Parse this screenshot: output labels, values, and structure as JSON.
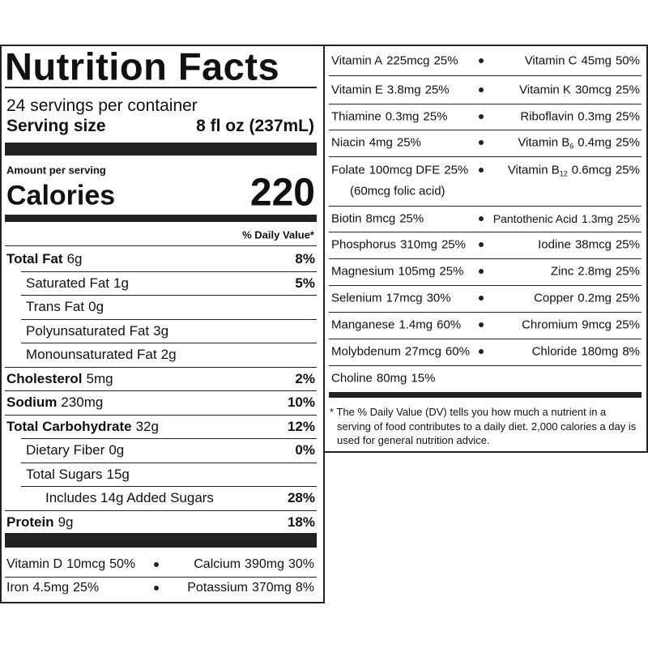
{
  "label": {
    "title": "Nutrition Facts",
    "servings": "24 servings per container",
    "serving_size_label": "Serving size",
    "serving_size": "8 fl oz (237mL)",
    "amount_per_serving": "Amount per serving",
    "calories_label": "Calories",
    "calories": "220",
    "dv_header": "% Daily Value*",
    "nutrients": [
      {
        "name": "Total Fat",
        "amount": "6g",
        "dv": "8%",
        "bold": true,
        "indent": 0
      },
      {
        "name": "Saturated Fat",
        "amount": "1g",
        "dv": "5%",
        "bold": false,
        "indent": 1
      },
      {
        "name": "Trans Fat",
        "amount": "0g",
        "bold": false,
        "indent": 1
      },
      {
        "name": "Polyunsaturated Fat",
        "amount": "3g",
        "bold": false,
        "indent": 1
      },
      {
        "name": "Monounsaturated Fat",
        "amount": "2g",
        "bold": false,
        "indent": 1
      },
      {
        "name": "Cholesterol",
        "amount": "5mg",
        "dv": "2%",
        "bold": true,
        "indent": 0
      },
      {
        "name": "Sodium",
        "amount": "230mg",
        "dv": "10%",
        "bold": true,
        "indent": 0
      },
      {
        "name": "Total Carbohydrate",
        "amount": "32g",
        "dv": "12%",
        "bold": true,
        "indent": 0
      },
      {
        "name": "Dietary Fiber",
        "amount": "0g",
        "dv": "0%",
        "bold": false,
        "indent": 1
      },
      {
        "name": "Total Sugars",
        "amount": "15g",
        "bold": false,
        "indent": 1
      },
      {
        "name": "Includes 14g Added Sugars",
        "dv": "28%",
        "bold": false,
        "indent": 2
      },
      {
        "name": "Protein",
        "amount": "9g",
        "dv": "18%",
        "bold": true,
        "indent": 0
      }
    ],
    "vitamins_left": [
      {
        "left": {
          "name": "Vitamin D",
          "amount": "10mcg",
          "dv": "50%"
        },
        "right": {
          "name": "Calcium",
          "amount": "390mg",
          "dv": "30%"
        }
      },
      {
        "left": {
          "name": "Iron",
          "amount": "4.5mg",
          "dv": "25%"
        },
        "right": {
          "name": "Potassium",
          "amount": "370mg",
          "dv": "8%"
        }
      }
    ],
    "vitamins_right": [
      {
        "left": {
          "name": "Vitamin A",
          "amount": "225mcg",
          "dv": "25%"
        },
        "right": {
          "name": "Vitamin C",
          "amount": "45mg",
          "dv": "50%"
        }
      },
      {
        "left": {
          "name": "Vitamin E",
          "amount": "3.8mg",
          "dv": "25%"
        },
        "right": {
          "name": "Vitamin K",
          "amount": "30mcg",
          "dv": "25%"
        }
      },
      {
        "left": {
          "name": "Thiamine",
          "amount": "0.3mg",
          "dv": "25%"
        },
        "right": {
          "name": "Riboflavin",
          "amount": "0.3mg",
          "dv": "25%"
        }
      },
      {
        "left": {
          "name": "Niacin",
          "amount": "4mg",
          "dv": "25%"
        },
        "right": {
          "name": "Vitamin B",
          "sub": "6",
          "amount": "0.4mg",
          "dv": "25%"
        }
      },
      {
        "left": {
          "name": "Folate",
          "amount": "100mcg DFE",
          "dv": "25%",
          "note": "(60mcg folic acid)"
        },
        "right": {
          "name": "Vitamin B",
          "sub": "12",
          "amount": "0.6mcg",
          "dv": "25%"
        }
      },
      {
        "left": {
          "name": "Biotin",
          "amount": "8mcg",
          "dv": "25%"
        },
        "right": {
          "name": "Pantothenic Acid",
          "amount": "1.3mg",
          "dv": "25%"
        }
      },
      {
        "left": {
          "name": "Phosphorus",
          "amount": "310mg",
          "dv": "25%"
        },
        "right": {
          "name": "Iodine",
          "amount": "38mcg",
          "dv": "25%"
        }
      },
      {
        "left": {
          "name": "Magnesium",
          "amount": "105mg",
          "dv": "25%"
        },
        "right": {
          "name": "Zinc",
          "amount": "2.8mg",
          "dv": "25%"
        }
      },
      {
        "left": {
          "name": "Selenium",
          "amount": "17mcg",
          "dv": "30%"
        },
        "right": {
          "name": "Copper",
          "amount": "0.2mg",
          "dv": "25%"
        }
      },
      {
        "left": {
          "name": "Manganese",
          "amount": "1.4mg",
          "dv": "60%"
        },
        "right": {
          "name": "Chromium",
          "amount": "9mcg",
          "dv": "25%"
        }
      },
      {
        "left": {
          "name": "Molybdenum",
          "amount": "27mcg",
          "dv": "60%"
        },
        "right": {
          "name": "Chloride",
          "amount": "180mg",
          "dv": "8%"
        }
      },
      {
        "left": {
          "name": "Choline",
          "amount": "80mg",
          "dv": "15%"
        }
      }
    ],
    "footnote": "* The % Daily Value (DV) tells you how much a nutrient in a serving of food contributes to a daily diet. 2,000 calories a day is used for general nutrition advice."
  }
}
